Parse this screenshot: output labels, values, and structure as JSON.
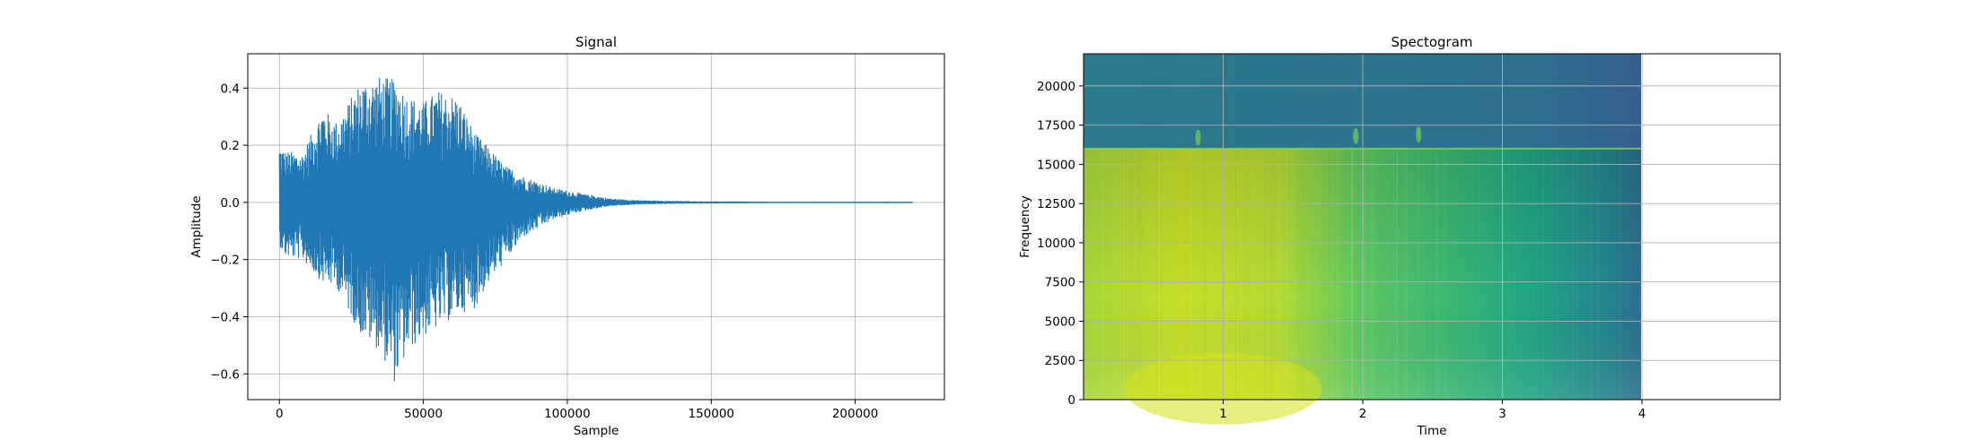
{
  "chart_data": [
    {
      "type": "line",
      "title": "Signal",
      "xlabel": "Sample",
      "ylabel": "Amplitude",
      "xlim": [
        -11000,
        231000
      ],
      "ylim": [
        -0.69,
        0.52
      ],
      "xticks": [
        0,
        50000,
        100000,
        150000,
        200000
      ],
      "xtick_labels": [
        "0",
        "50000",
        "100000",
        "150000",
        "200000"
      ],
      "yticks": [
        -0.6,
        -0.4,
        -0.2,
        0.0,
        0.2,
        0.4
      ],
      "ytick_labels": [
        "−0.6",
        "−0.4",
        "−0.2",
        "0.0",
        "0.2",
        "0.4"
      ],
      "grid": true,
      "line_color": "#1f77b4",
      "envelope": {
        "x": [
          0,
          2000,
          8000,
          15000,
          20000,
          28000,
          35000,
          40000,
          45000,
          50000,
          55000,
          62000,
          68000,
          72000,
          78000,
          85000,
          95000,
          105000,
          115000,
          125000,
          135000,
          150000,
          158000,
          170000,
          200000,
          220000
        ],
        "upper": [
          0.2,
          0.18,
          0.17,
          0.33,
          0.28,
          0.42,
          0.44,
          0.43,
          0.37,
          0.35,
          0.39,
          0.37,
          0.24,
          0.2,
          0.13,
          0.09,
          0.05,
          0.03,
          0.012,
          0.006,
          0.004,
          0.002,
          0.002,
          0.001,
          0.001,
          0.001
        ],
        "lower": [
          -0.15,
          -0.19,
          -0.2,
          -0.28,
          -0.3,
          -0.46,
          -0.52,
          -0.63,
          -0.52,
          -0.47,
          -0.44,
          -0.39,
          -0.37,
          -0.29,
          -0.21,
          -0.12,
          -0.06,
          -0.03,
          -0.012,
          -0.006,
          -0.004,
          -0.002,
          -0.002,
          -0.001,
          -0.001,
          -0.001
        ]
      }
    },
    {
      "type": "heatmap",
      "title": "Spectogram",
      "xlabel": "Time",
      "ylabel": "Frequency",
      "xlim": [
        0,
        4.99
      ],
      "ylim": [
        0,
        22050
      ],
      "data_extent_x": [
        0,
        4.0
      ],
      "xticks": [
        1,
        2,
        3,
        4
      ],
      "xtick_labels": [
        "1",
        "2",
        "3",
        "4"
      ],
      "yticks": [
        0,
        2500,
        5000,
        7500,
        10000,
        12500,
        15000,
        17500,
        20000
      ],
      "ytick_labels": [
        "0",
        "2500",
        "5000",
        "7500",
        "10000",
        "12500",
        "15000",
        "17500",
        "20000"
      ],
      "cutoff_frequency": 16000,
      "grid": true,
      "colormap": "viridis"
    }
  ]
}
